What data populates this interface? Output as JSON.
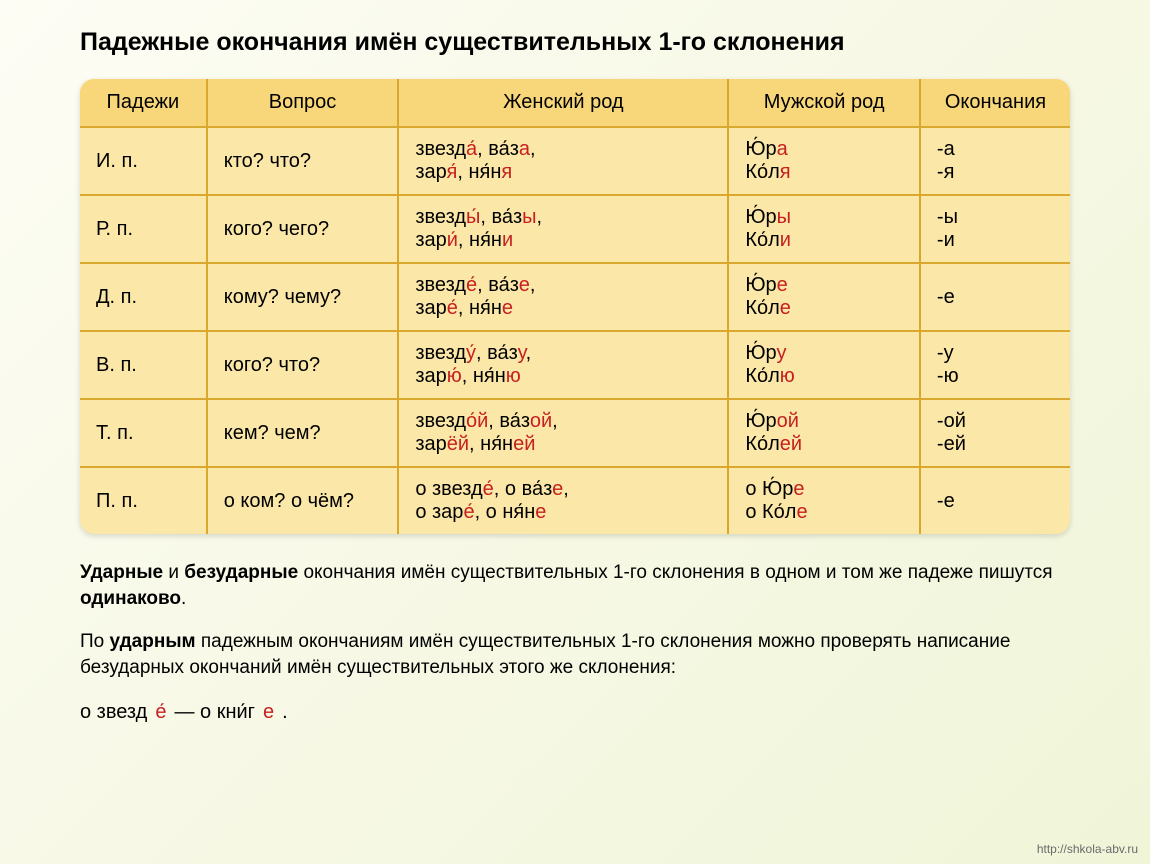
{
  "title": "Падежные окончания имён существительных 1-го склонения",
  "headers": {
    "case": "Падежи",
    "question": "Вопрос",
    "feminine": "Женский род",
    "masculine": "Мужской род",
    "endings": "Окончания"
  },
  "rows": [
    {
      "case": "И. п.",
      "question": "кто? что?",
      "fem_html": "звезд<span class='hl'>а́</span>, ва́з<span class='hl'>а</span>,<br>зар<span class='hl'>я́</span>, ня́н<span class='hl'>я</span>",
      "masc_html": "Ю́р<span class='hl'>а</span><br>Ко́л<span class='hl'>я</span>",
      "end_html": "-а<br>-я"
    },
    {
      "case": "Р. п.",
      "question": "кого? чего?",
      "fem_html": "звезд<span class='hl'>ы́</span>, ва́з<span class='hl'>ы</span>,<br>зар<span class='hl'>и́</span>, ня́н<span class='hl'>и</span>",
      "masc_html": "Ю́р<span class='hl'>ы</span><br>Ко́л<span class='hl'>и</span>",
      "end_html": "-ы<br>-и"
    },
    {
      "case": "Д. п.",
      "question": "кому? чему?",
      "fem_html": "звезд<span class='hl'>е́</span>, ва́з<span class='hl'>е</span>,<br>зар<span class='hl'>е́</span>, ня́н<span class='hl'>е</span>",
      "masc_html": "Ю́р<span class='hl'>е</span><br>Ко́л<span class='hl'>е</span>",
      "end_html": "-е"
    },
    {
      "case": "В. п.",
      "question": "кого? что?",
      "fem_html": "звезд<span class='hl'>у́</span>, ва́з<span class='hl'>у</span>,<br>зар<span class='hl'>ю́</span>, ня́н<span class='hl'>ю</span>",
      "masc_html": "Ю́р<span class='hl'>у</span><br>Ко́л<span class='hl'>ю</span>",
      "end_html": "-у<br>-ю"
    },
    {
      "case": "Т. п.",
      "question": "кем? чем?",
      "fem_html": "звезд<span class='hl'>о́й</span>, ва́з<span class='hl'>ой</span>,<br>зар<span class='hl'>ёй</span>, ня́н<span class='hl'>ей</span>",
      "masc_html": "Ю́р<span class='hl'>ой</span><br>Ко́л<span class='hl'>ей</span>",
      "end_html": "-ой<br>-ей"
    },
    {
      "case": "П. п.",
      "question": "о ком? о чём?",
      "fem_html": "о звезд<span class='hl'>е́</span>, о ва́з<span class='hl'>е</span>,<br>о зар<span class='hl'>е́</span>, о ня́н<span class='hl'>е</span>",
      "masc_html": "о Ю́р<span class='hl'>е</span><br>о Ко́л<span class='hl'>е</span>",
      "end_html": "-е"
    }
  ],
  "rules": {
    "p1_html": "<b>Ударные</b> и <b>безударные</b> окончания имён существительных 1-го склонения в одном и том же падеже пишутся <b>одинаково</b>.",
    "p2_html": "По <b>ударным</b> падежным окончаниям имён существительных 1-го склонения можно проверять написание безударных окончаний имён существительных этого же склонения:",
    "example_html": "о звезд<span class='hl'>е́</span> — о кни́г<span class='hl'>е</span>."
  },
  "footer_url": "http://shkola-abv.ru",
  "style": {
    "table_bg": "#fbe8a8",
    "header_bg": "#f8d77a",
    "border_color": "#d9a82e",
    "highlight_color": "#c62020",
    "title_fontsize": 25,
    "cell_fontsize": 20,
    "rules_fontsize": 19
  }
}
